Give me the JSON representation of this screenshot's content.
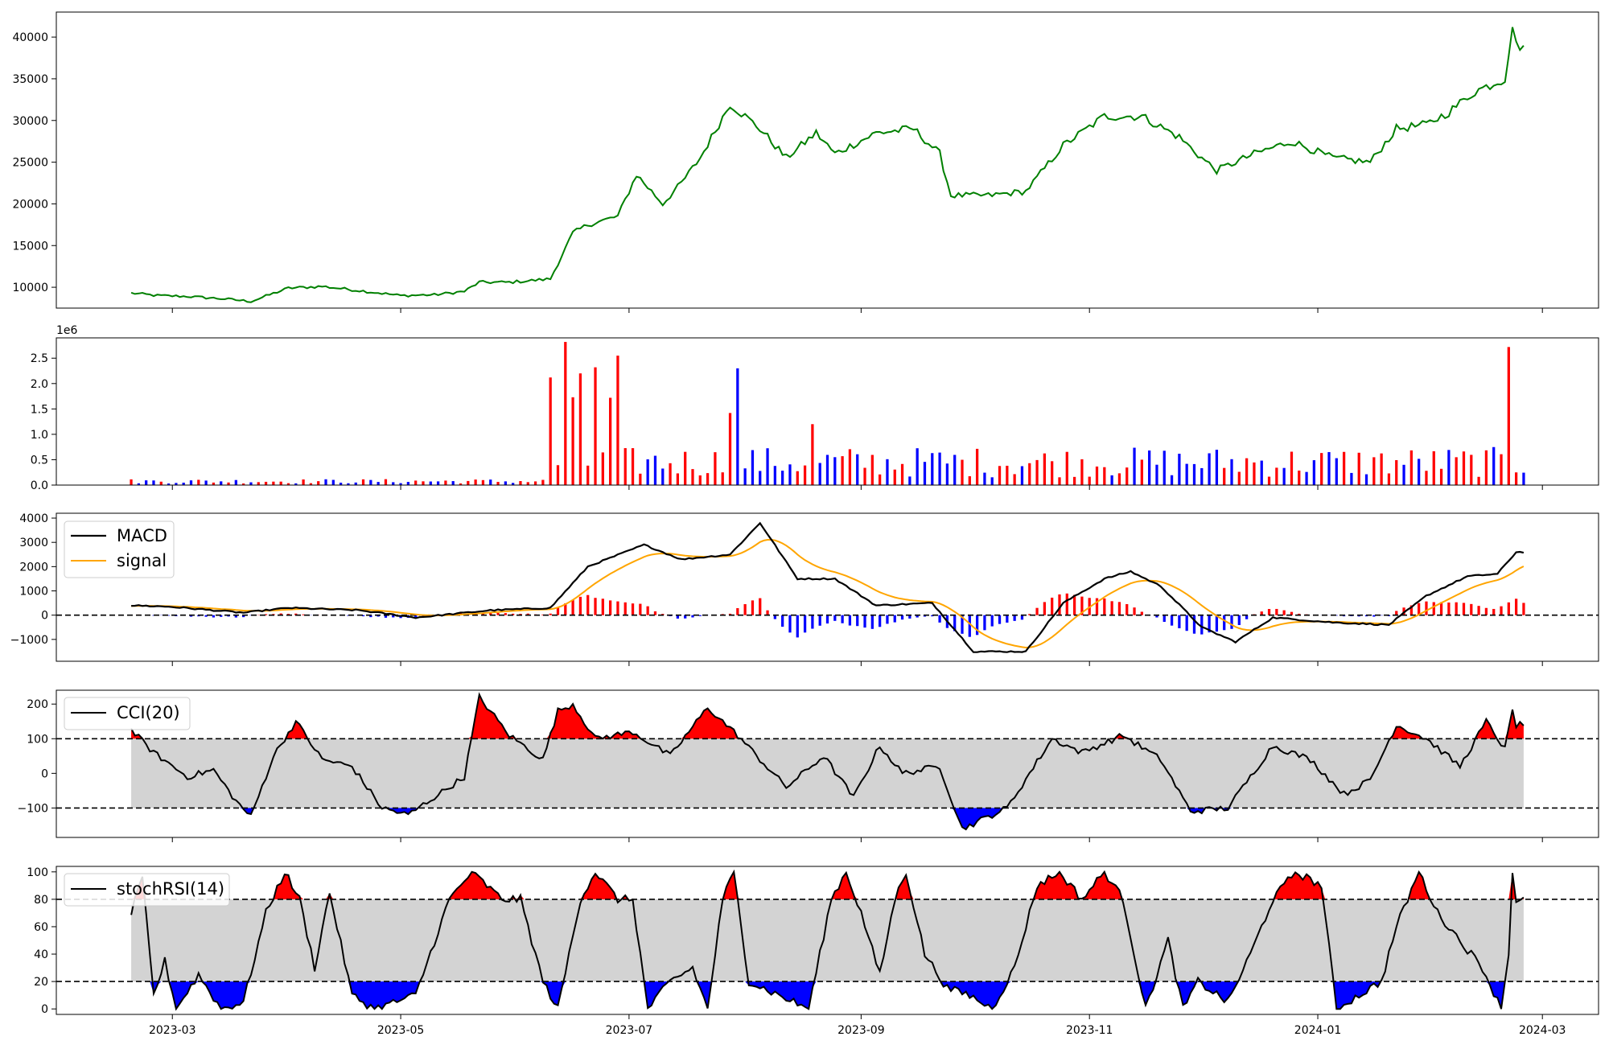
{
  "chart_data": [
    {
      "name": "price",
      "type": "line",
      "color": "#008000",
      "x_start": "2023-02-18",
      "x_end": "2024-02-25",
      "yticks": [
        "10000",
        "15000",
        "20000",
        "25000",
        "30000",
        "35000",
        "40000"
      ],
      "ylim": [
        7500,
        43000
      ],
      "anchors": [
        [
          "2023-02-18",
          9300
        ],
        [
          "2023-02-25",
          9000
        ],
        [
          "2023-03-05",
          8900
        ],
        [
          "2023-03-15",
          8600
        ],
        [
          "2023-03-22",
          8300
        ],
        [
          "2023-04-01",
          9900
        ],
        [
          "2023-04-10",
          10100
        ],
        [
          "2023-04-20",
          9600
        ],
        [
          "2023-05-01",
          9000
        ],
        [
          "2023-05-10",
          9100
        ],
        [
          "2023-05-18",
          9500
        ],
        [
          "2023-05-22",
          10600
        ],
        [
          "2023-05-30",
          10600
        ],
        [
          "2023-06-05",
          10800
        ],
        [
          "2023-06-10",
          11000
        ],
        [
          "2023-06-16",
          16500
        ],
        [
          "2023-06-20",
          17500
        ],
        [
          "2023-06-28",
          18500
        ],
        [
          "2023-07-03",
          23500
        ],
        [
          "2023-07-10",
          20000
        ],
        [
          "2023-07-15",
          22500
        ],
        [
          "2023-07-20",
          25500
        ],
        [
          "2023-07-28",
          32000
        ],
        [
          "2023-08-05",
          29000
        ],
        [
          "2023-08-12",
          25500
        ],
        [
          "2023-08-20",
          28500
        ],
        [
          "2023-08-25",
          26000
        ],
        [
          "2023-09-05",
          28500
        ],
        [
          "2023-09-15",
          29000
        ],
        [
          "2023-09-22",
          26000
        ],
        [
          "2023-09-25",
          21000
        ],
        [
          "2023-10-05",
          21000
        ],
        [
          "2023-10-15",
          21500
        ],
        [
          "2023-10-25",
          27000
        ],
        [
          "2023-11-05",
          30500
        ],
        [
          "2023-11-15",
          30500
        ],
        [
          "2023-11-25",
          28000
        ],
        [
          "2023-12-01",
          25500
        ],
        [
          "2023-12-05",
          24000
        ],
        [
          "2023-12-15",
          26000
        ],
        [
          "2023-12-25",
          27500
        ],
        [
          "2024-01-05",
          25500
        ],
        [
          "2024-01-15",
          25000
        ],
        [
          "2024-01-22",
          29000
        ],
        [
          "2024-01-30",
          29500
        ],
        [
          "2024-02-05",
          31000
        ],
        [
          "2024-02-12",
          33500
        ],
        [
          "2024-02-20",
          35000
        ],
        [
          "2024-02-22",
          41500
        ],
        [
          "2024-02-23",
          39000
        ]
      ]
    },
    {
      "name": "volume",
      "type": "bar",
      "colors": {
        "up": "#ff0000",
        "down": "#0000ff",
        "flat": "#000000"
      },
      "offset_text": "1e6",
      "yticks": [
        "0.0",
        "0.5",
        "1.0",
        "1.5",
        "2.0",
        "2.5"
      ],
      "ylim": [
        0,
        2.9
      ],
      "spikes": [
        [
          "2023-06-11",
          2.12
        ],
        [
          "2023-06-14",
          2.82
        ],
        [
          "2023-06-16",
          1.73
        ],
        [
          "2023-06-18",
          2.2
        ],
        [
          "2023-06-23",
          2.32
        ],
        [
          "2023-06-26",
          1.72
        ],
        [
          "2023-06-28",
          2.55
        ],
        [
          "2023-07-28",
          1.42
        ],
        [
          "2023-07-30",
          2.3
        ],
        [
          "2023-08-20",
          1.2
        ],
        [
          "2024-02-22",
          2.72
        ]
      ]
    },
    {
      "name": "MACD",
      "type": "line+bar",
      "series": [
        {
          "name": "MACD",
          "color": "#000000"
        },
        {
          "name": "signal",
          "color": "#ffa500"
        }
      ],
      "yticks": [
        "−1000",
        "0",
        "1000",
        "2000",
        "3000",
        "4000"
      ],
      "ylim": [
        -1900,
        4200
      ],
      "anchors": [
        [
          "2023-02-18",
          400
        ],
        [
          "2023-02-28",
          350
        ],
        [
          "2023-03-20",
          100
        ],
        [
          "2023-04-01",
          300
        ],
        [
          "2023-04-20",
          200
        ],
        [
          "2023-05-05",
          -100
        ],
        [
          "2023-05-25",
          200
        ],
        [
          "2023-06-10",
          300
        ],
        [
          "2023-06-20",
          2000
        ],
        [
          "2023-07-05",
          2900
        ],
        [
          "2023-07-15",
          2300
        ],
        [
          "2023-07-28",
          2500
        ],
        [
          "2023-08-05",
          3800
        ],
        [
          "2023-08-15",
          1500
        ],
        [
          "2023-08-25",
          1500
        ],
        [
          "2023-09-05",
          400
        ],
        [
          "2023-09-20",
          500
        ],
        [
          "2023-10-01",
          -1500
        ],
        [
          "2023-10-15",
          -1500
        ],
        [
          "2023-10-25",
          500
        ],
        [
          "2023-11-05",
          1500
        ],
        [
          "2023-11-12",
          1800
        ],
        [
          "2023-11-20",
          1200
        ],
        [
          "2023-12-01",
          -500
        ],
        [
          "2023-12-10",
          -1100
        ],
        [
          "2023-12-20",
          -100
        ],
        [
          "2024-01-05",
          -300
        ],
        [
          "2024-01-20",
          -400
        ],
        [
          "2024-01-30",
          800
        ],
        [
          "2024-02-10",
          1600
        ],
        [
          "2024-02-18",
          1700
        ],
        [
          "2024-02-23",
          2600
        ]
      ]
    },
    {
      "name": "CCI",
      "type": "line",
      "legend": "CCI(20)",
      "yticks": [
        "−100",
        "0",
        "100",
        "200"
      ],
      "ylim": [
        -185,
        240
      ],
      "levels": [
        -100,
        100
      ],
      "colors": {
        "over": "#ff0000",
        "under": "#0000ff",
        "band": "#d3d3d3"
      },
      "anchors": [
        [
          "2023-02-18",
          125
        ],
        [
          "2023-02-24",
          60
        ],
        [
          "2023-03-05",
          -10
        ],
        [
          "2023-03-12",
          10
        ],
        [
          "2023-03-18",
          -80
        ],
        [
          "2023-03-22",
          -125
        ],
        [
          "2023-03-28",
          50
        ],
        [
          "2023-04-03",
          150
        ],
        [
          "2023-04-10",
          40
        ],
        [
          "2023-04-18",
          20
        ],
        [
          "2023-04-26",
          -100
        ],
        [
          "2023-05-03",
          -120
        ],
        [
          "2023-05-18",
          -10
        ],
        [
          "2023-05-22",
          220
        ],
        [
          "2023-05-30",
          110
        ],
        [
          "2023-06-08",
          40
        ],
        [
          "2023-06-12",
          180
        ],
        [
          "2023-06-16",
          200
        ],
        [
          "2023-06-22",
          100
        ],
        [
          "2023-07-02",
          120
        ],
        [
          "2023-07-12",
          50
        ],
        [
          "2023-07-22",
          190
        ],
        [
          "2023-07-30",
          110
        ],
        [
          "2023-08-05",
          40
        ],
        [
          "2023-08-12",
          -40
        ],
        [
          "2023-08-22",
          50
        ],
        [
          "2023-08-30",
          -70
        ],
        [
          "2023-09-06",
          80
        ],
        [
          "2023-09-12",
          0
        ],
        [
          "2023-09-22",
          20
        ],
        [
          "2023-09-28",
          -160
        ],
        [
          "2023-10-10",
          -100
        ],
        [
          "2023-10-22",
          100
        ],
        [
          "2023-10-30",
          60
        ],
        [
          "2023-11-10",
          110
        ],
        [
          "2023-11-20",
          40
        ],
        [
          "2023-11-28",
          -110
        ],
        [
          "2023-12-08",
          -100
        ],
        [
          "2023-12-20",
          80
        ],
        [
          "2023-12-30",
          40
        ],
        [
          "2024-01-08",
          -60
        ],
        [
          "2024-01-15",
          -20
        ],
        [
          "2024-01-22",
          140
        ],
        [
          "2024-01-30",
          100
        ],
        [
          "2024-02-08",
          20
        ],
        [
          "2024-02-15",
          150
        ],
        [
          "2024-02-20",
          70
        ],
        [
          "2024-02-22",
          180
        ],
        [
          "2024-02-23",
          140
        ]
      ]
    },
    {
      "name": "stochRSI",
      "type": "line",
      "legend": "stochRSI(14)",
      "yticks": [
        "0",
        "20",
        "40",
        "60",
        "80",
        "100"
      ],
      "ylim": [
        -4,
        104
      ],
      "levels": [
        20,
        80
      ],
      "colors": {
        "over": "#ff0000",
        "under": "#0000ff",
        "band": "#d3d3d3"
      },
      "anchors": [
        [
          "2023-02-18",
          70
        ],
        [
          "2023-02-21",
          95
        ],
        [
          "2023-02-24",
          10
        ],
        [
          "2023-02-27",
          35
        ],
        [
          "2023-03-02",
          0
        ],
        [
          "2023-03-08",
          25
        ],
        [
          "2023-03-14",
          0
        ],
        [
          "2023-03-20",
          5
        ],
        [
          "2023-03-26",
          70
        ],
        [
          "2023-03-31",
          100
        ],
        [
          "2023-04-04",
          80
        ],
        [
          "2023-04-08",
          30
        ],
        [
          "2023-04-12",
          85
        ],
        [
          "2023-04-18",
          10
        ],
        [
          "2023-04-24",
          0
        ],
        [
          "2023-05-05",
          10
        ],
        [
          "2023-05-14",
          80
        ],
        [
          "2023-05-20",
          100
        ],
        [
          "2023-05-28",
          80
        ],
        [
          "2023-06-02",
          80
        ],
        [
          "2023-06-08",
          20
        ],
        [
          "2023-06-12",
          0
        ],
        [
          "2023-06-18",
          80
        ],
        [
          "2023-06-22",
          100
        ],
        [
          "2023-06-28",
          80
        ],
        [
          "2023-07-02",
          80
        ],
        [
          "2023-07-06",
          0
        ],
        [
          "2023-07-12",
          20
        ],
        [
          "2023-07-18",
          30
        ],
        [
          "2023-07-22",
          0
        ],
        [
          "2023-07-26",
          80
        ],
        [
          "2023-07-29",
          100
        ],
        [
          "2023-08-02",
          20
        ],
        [
          "2023-08-10",
          10
        ],
        [
          "2023-08-18",
          0
        ],
        [
          "2023-08-24",
          80
        ],
        [
          "2023-08-28",
          100
        ],
        [
          "2023-09-01",
          70
        ],
        [
          "2023-09-06",
          25
        ],
        [
          "2023-09-10",
          80
        ],
        [
          "2023-09-13",
          100
        ],
        [
          "2023-09-18",
          40
        ],
        [
          "2023-09-24",
          15
        ],
        [
          "2023-09-30",
          10
        ],
        [
          "2023-10-06",
          0
        ],
        [
          "2023-10-12",
          30
        ],
        [
          "2023-10-18",
          90
        ],
        [
          "2023-10-24",
          100
        ],
        [
          "2023-10-30",
          80
        ],
        [
          "2023-11-05",
          100
        ],
        [
          "2023-11-10",
          80
        ],
        [
          "2023-11-16",
          0
        ],
        [
          "2023-11-22",
          50
        ],
        [
          "2023-11-26",
          0
        ],
        [
          "2023-11-30",
          20
        ],
        [
          "2023-12-08",
          5
        ],
        [
          "2023-12-14",
          40
        ],
        [
          "2023-12-20",
          80
        ],
        [
          "2023-12-26",
          100
        ],
        [
          "2024-01-02",
          90
        ],
        [
          "2024-01-06",
          0
        ],
        [
          "2024-01-12",
          10
        ],
        [
          "2024-01-18",
          20
        ],
        [
          "2024-01-22",
          60
        ],
        [
          "2024-01-28",
          100
        ],
        [
          "2024-02-02",
          70
        ],
        [
          "2024-02-08",
          50
        ],
        [
          "2024-02-14",
          30
        ],
        [
          "2024-02-19",
          0
        ],
        [
          "2024-02-21",
          40
        ],
        [
          "2024-02-22",
          100
        ],
        [
          "2024-02-23",
          80
        ]
      ]
    }
  ],
  "xaxis": {
    "tick_dates": [
      "2023-03-01",
      "2023-05-01",
      "2023-07-01",
      "2023-09-01",
      "2023-11-01",
      "2024-01-01",
      "2024-03-01"
    ],
    "tick_labels": [
      "2023-03",
      "2023-05",
      "2023-07",
      "2023-09",
      "2023-11",
      "2024-01",
      "2024-03"
    ],
    "range": [
      "2023-01-29",
      "2024-03-16"
    ]
  }
}
